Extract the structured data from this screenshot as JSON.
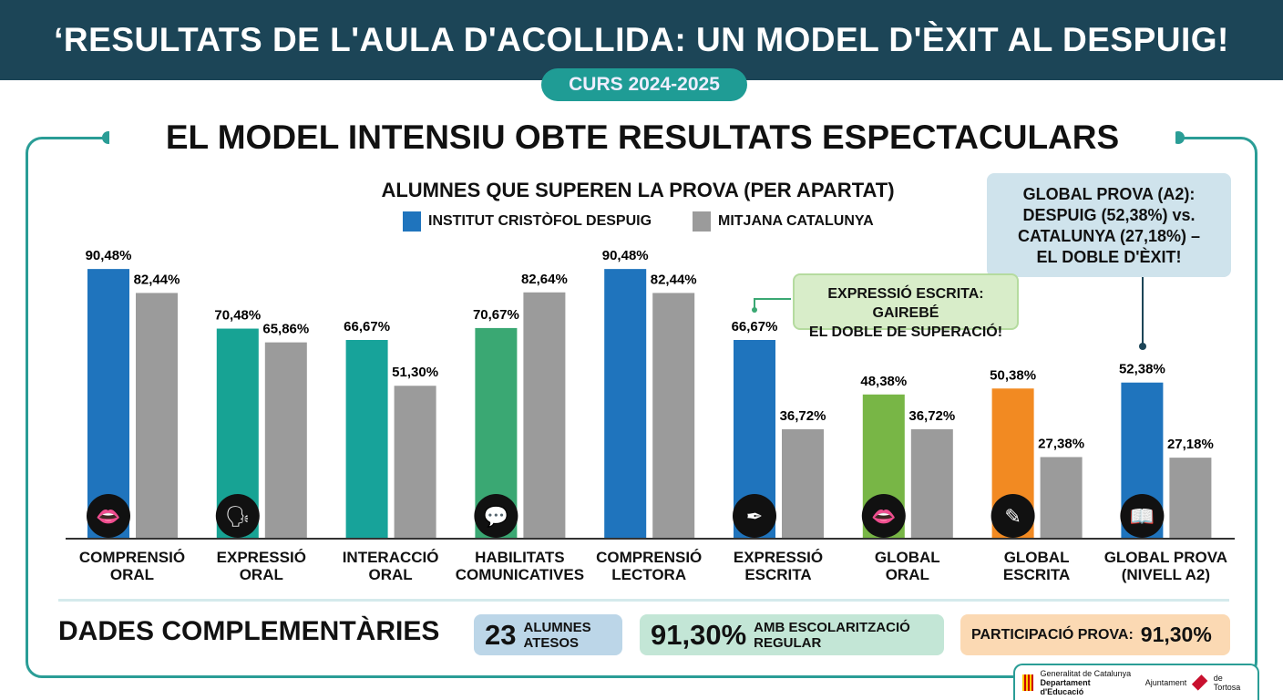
{
  "header": {
    "title": "‘RESULTATS DE L'AULA D'ACOLLIDA: UN MODEL D'ÈXIT AL DESPUIG!",
    "course": "CURS 2024-2025"
  },
  "subtitle": "EL MODEL INTENSIU OBTE RESULTATS ESPECTACULARS",
  "callouts": {
    "global_lines": [
      "GLOBAL PROVA (A2):",
      "DESPUIG (52,38%) vs.",
      "CATALUNYA (27,18%) –",
      "EL DOBLE D'ÈXIT!"
    ],
    "escrita_lines": [
      "EXPRESSIÓ ESCRITA: GAIREBÉ",
      "EL DOBLE DE SUPERACIÓ!"
    ]
  },
  "chart_data": {
    "type": "bar",
    "title": "ALUMNES QUE SUPEREN LA PROVA (PER APARTAT)",
    "ylim": [
      0,
      100
    ],
    "xlabel": "",
    "ylabel": "",
    "legend_position": "top-center",
    "categories": [
      [
        "COMPRENSIÓ",
        "ORAL"
      ],
      [
        "EXPRESSIÓ",
        "ORAL"
      ],
      [
        "INTERACCIÓ",
        "ORAL"
      ],
      [
        "HABILITATS",
        "COMUNICATIVES"
      ],
      [
        "COMPRENSIÓ",
        "LECTORA"
      ],
      [
        "EXPRESSIÓ",
        "ESCRITA"
      ],
      [
        "GLOBAL",
        "ORAL"
      ],
      [
        "GLOBAL",
        "ESCRITA"
      ],
      [
        "GLOBAL PROVA",
        "(NIVELL A2)"
      ]
    ],
    "icons": [
      "lips-icon",
      "speaking-head-icon",
      "none",
      "speech-bubbles-icon",
      "none",
      "pen-icon",
      "lips-icon",
      "pencil-square-icon",
      "book-icon"
    ],
    "series": [
      {
        "name": "INSTITUT CRISTÒFOL DESPUIG",
        "color": "#1f77c0",
        "values": [
          90.48,
          70.48,
          66.67,
          70.67,
          90.48,
          66.67,
          48.38,
          50.38,
          52.38
        ],
        "labels": [
          "90,48%",
          "70,48%",
          "66,67%",
          "70,67%",
          "90,48%",
          "66,67%",
          "48,38%",
          "50,38%",
          "52,38%"
        ],
        "bar_colors": [
          "#1f74bd",
          "#17a394",
          "#17a39a",
          "#3aa873",
          "#1f74bd",
          "#1f74bd",
          "#78b646",
          "#f28a22",
          "#1f74bd"
        ]
      },
      {
        "name": "MITJANA CATALUNYA",
        "color": "#9b9b9b",
        "values": [
          82.44,
          65.86,
          51.3,
          82.64,
          82.44,
          36.72,
          36.72,
          27.38,
          27.18
        ],
        "labels": [
          "82,44%",
          "65,86%",
          "51,30%",
          "82,64%",
          "82,44%",
          "36,72%",
          "36,72%",
          "27,38%",
          "27,18%"
        ]
      }
    ]
  },
  "complementary": {
    "title": "DADES COMPLEMENTÀRIES",
    "students_value": "23",
    "students_label_1": "ALUMNES",
    "students_label_2": "ATESOS",
    "schooling_value": "91,30%",
    "schooling_label_1": "AMB ESCOLARITZACIÓ",
    "schooling_label_2": "REGULAR",
    "participation_label": "PARTICIPACIÓ PROVA:",
    "participation_value": "91,30%"
  },
  "logos": {
    "gencat_1": "Generalitat de Catalunya",
    "gencat_2": "Departament d'Educació",
    "ajuntament_1": "Ajuntament",
    "ajuntament_2": "de Tortosa"
  }
}
